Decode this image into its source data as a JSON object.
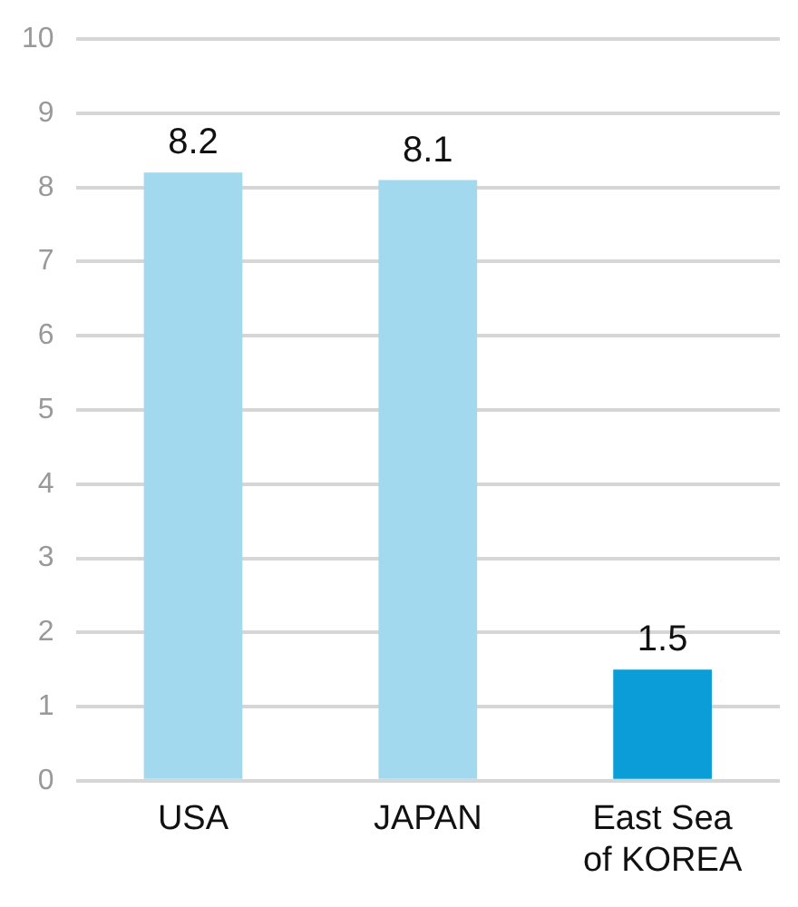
{
  "chart_data": {
    "type": "bar",
    "categories": [
      "USA",
      "JAPAN",
      "East Sea\nof KOREA"
    ],
    "values": [
      8.2,
      8.1,
      1.5
    ],
    "colors": [
      "#a2d9ee",
      "#a2d9ee",
      "#0a9dd8"
    ],
    "ylim": [
      0,
      10
    ],
    "yticks": [
      0,
      1,
      2,
      3,
      4,
      5,
      6,
      7,
      8,
      9,
      10
    ],
    "grid": "y",
    "data_labels": true,
    "legend": false
  }
}
